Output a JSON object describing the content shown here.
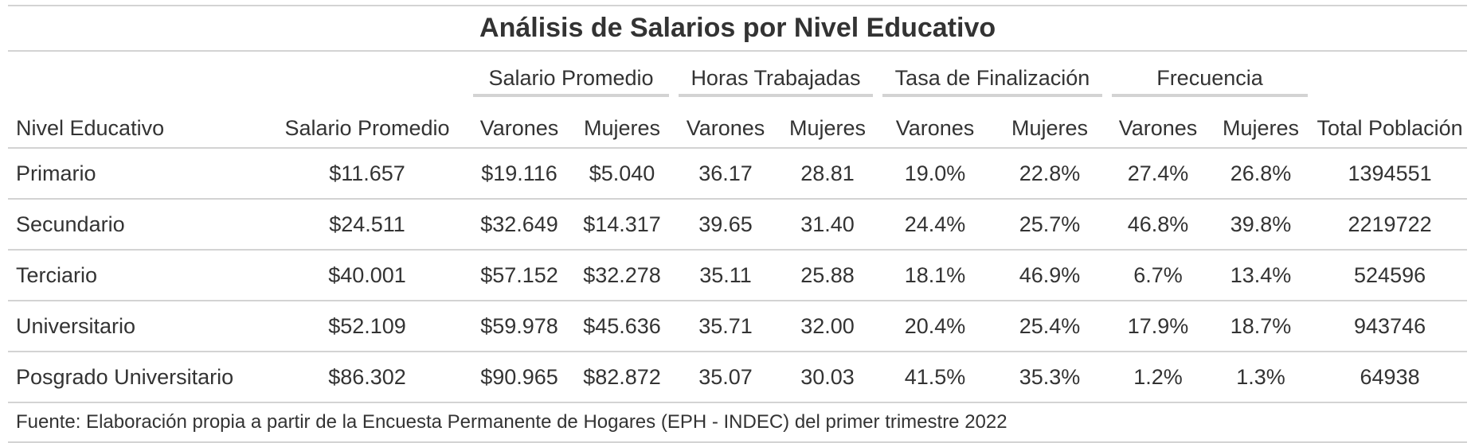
{
  "chart_data": {
    "type": "table",
    "title": "Análisis de Salarios por Nivel Educativo",
    "spanners": [
      "Salario Promedio",
      "Horas Trabajadas",
      "Tasa de Finalización",
      "Frecuencia"
    ],
    "columns": [
      "Nivel Educativo",
      "Salario Promedio",
      "Varones",
      "Mujeres",
      "Varones",
      "Mujeres",
      "Varones",
      "Mujeres",
      "Varones",
      "Mujeres",
      "Total Población"
    ],
    "rows": [
      [
        "Primario",
        "$11.657",
        "$19.116",
        "$5.040",
        "36.17",
        "28.81",
        "19.0%",
        "22.8%",
        "27.4%",
        "26.8%",
        "1394551"
      ],
      [
        "Secundario",
        "$24.511",
        "$32.649",
        "$14.317",
        "39.65",
        "31.40",
        "24.4%",
        "25.7%",
        "46.8%",
        "39.8%",
        "2219722"
      ],
      [
        "Terciario",
        "$40.001",
        "$57.152",
        "$32.278",
        "35.11",
        "25.88",
        "18.1%",
        "46.9%",
        "6.7%",
        "13.4%",
        "524596"
      ],
      [
        "Universitario",
        "$52.109",
        "$59.978",
        "$45.636",
        "35.71",
        "32.00",
        "20.4%",
        "25.4%",
        "17.9%",
        "18.7%",
        "943746"
      ],
      [
        "Posgrado Universitario",
        "$86.302",
        "$90.965",
        "$82.872",
        "35.07",
        "30.03",
        "41.5%",
        "35.3%",
        "1.2%",
        "1.3%",
        "64938"
      ]
    ],
    "source_note": "Fuente: Elaboración propia a partir de la Encuesta Permanente de Hogares (EPH - INDEC) del primer trimestre 2022"
  }
}
